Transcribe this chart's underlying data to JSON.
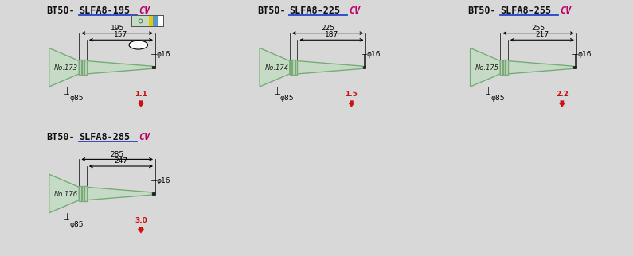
{
  "panels": [
    {
      "title": "BT50-SLFA8-195",
      "title_cv": "CV",
      "no": "No.173",
      "dim1": 195,
      "dim2": 157,
      "weight": "1.1",
      "has_t": true,
      "has_icon": true
    },
    {
      "title": "BT50-SLFA8-225",
      "title_cv": "CV",
      "no": "No.174",
      "dim1": 225,
      "dim2": 187,
      "weight": "1.5",
      "has_t": false,
      "has_icon": false
    },
    {
      "title": "BT50-SLFA8-255",
      "title_cv": "CV",
      "no": "No.175",
      "dim1": 255,
      "dim2": 217,
      "weight": "2.2",
      "has_t": false,
      "has_icon": false
    },
    {
      "title": "BT50-SLFA8-285",
      "title_cv": "CV",
      "no": "No.176",
      "dim1": 285,
      "dim2": 247,
      "weight": "3.0",
      "has_t": false,
      "has_icon": false
    }
  ],
  "bg_color": "#d8d8d8",
  "panel_bg": "#efefef",
  "green_fill": "#c5dbc5",
  "green_edge": "#7aaa7a",
  "arrow_red": "#cc1111",
  "title_black": "#111111",
  "cv_magenta": "#bb0066",
  "phi_str": "φ16",
  "base_str": "φ85"
}
